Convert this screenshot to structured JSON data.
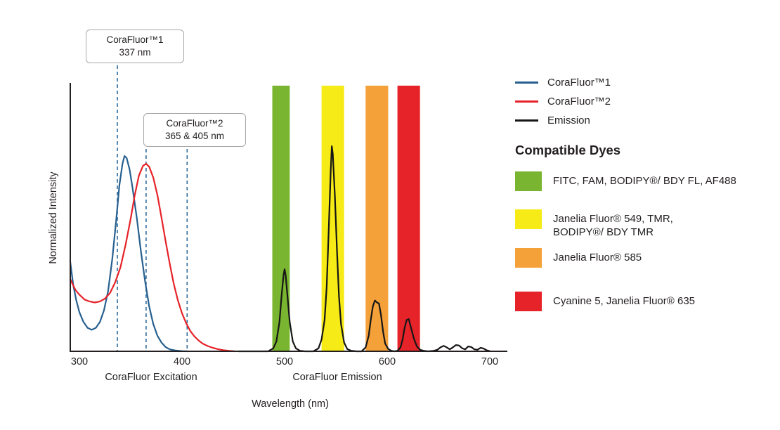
{
  "chart_data": {
    "type": "line",
    "title": "",
    "xlabel": "Wavelength (nm)",
    "ylabel": "Normalized Intensity",
    "xlim": [
      291,
      716
    ],
    "ylim": [
      0,
      1.4
    ],
    "x_ticks": [
      300,
      400,
      500,
      600,
      700
    ],
    "grid": false,
    "axis_section_labels": [
      {
        "text": "CoraFluor Excitation"
      },
      {
        "text": "CoraFluor Emission"
      }
    ],
    "dashed_line_color": "#2d6a9b",
    "dashed_lines": [
      {
        "wavelength": 337
      },
      {
        "wavelength": 365
      },
      {
        "wavelength": 405
      }
    ],
    "annotations": [
      {
        "title": "CoraFluor™1",
        "value": "337 nm"
      },
      {
        "title": "CoraFluor™2",
        "value": "365 & 405 nm"
      }
    ],
    "series": [
      {
        "name": "CoraFluor™1",
        "color": "#27608f",
        "points": [
          [
            291,
            0.46
          ],
          [
            294,
            0.34
          ],
          [
            297,
            0.26
          ],
          [
            300,
            0.2
          ],
          [
            304,
            0.15
          ],
          [
            308,
            0.12
          ],
          [
            312,
            0.11
          ],
          [
            316,
            0.12
          ],
          [
            320,
            0.15
          ],
          [
            324,
            0.21
          ],
          [
            328,
            0.31
          ],
          [
            332,
            0.47
          ],
          [
            336,
            0.68
          ],
          [
            339,
            0.85
          ],
          [
            342,
            0.96
          ],
          [
            344,
            1.0
          ],
          [
            346,
            0.99
          ],
          [
            349,
            0.93
          ],
          [
            352,
            0.83
          ],
          [
            356,
            0.68
          ],
          [
            360,
            0.51
          ],
          [
            364,
            0.36
          ],
          [
            368,
            0.23
          ],
          [
            372,
            0.14
          ],
          [
            376,
            0.08
          ],
          [
            380,
            0.045
          ],
          [
            384,
            0.022
          ],
          [
            388,
            0.01
          ],
          [
            394,
            0.004
          ],
          [
            400,
            0.001
          ],
          [
            406,
            0
          ]
        ]
      },
      {
        "name": "CoraFluor™2",
        "color": "#e62329",
        "points": [
          [
            291,
            0.37
          ],
          [
            296,
            0.315
          ],
          [
            300,
            0.29
          ],
          [
            305,
            0.265
          ],
          [
            310,
            0.255
          ],
          [
            315,
            0.25
          ],
          [
            320,
            0.255
          ],
          [
            325,
            0.27
          ],
          [
            330,
            0.3
          ],
          [
            335,
            0.355
          ],
          [
            340,
            0.43
          ],
          [
            345,
            0.545
          ],
          [
            350,
            0.68
          ],
          [
            354,
            0.8
          ],
          [
            358,
            0.9
          ],
          [
            362,
            0.95
          ],
          [
            365,
            0.96
          ],
          [
            368,
            0.945
          ],
          [
            372,
            0.89
          ],
          [
            376,
            0.8
          ],
          [
            380,
            0.685
          ],
          [
            384,
            0.565
          ],
          [
            388,
            0.45
          ],
          [
            392,
            0.345
          ],
          [
            396,
            0.26
          ],
          [
            400,
            0.195
          ],
          [
            404,
            0.145
          ],
          [
            408,
            0.105
          ],
          [
            412,
            0.077
          ],
          [
            416,
            0.056
          ],
          [
            420,
            0.04
          ],
          [
            425,
            0.027
          ],
          [
            430,
            0.018
          ],
          [
            435,
            0.011
          ],
          [
            440,
            0.006
          ],
          [
            446,
            0.002
          ],
          [
            452,
            0
          ]
        ]
      },
      {
        "name": "Emission",
        "color": "#161616",
        "points": [
          [
            455,
            0
          ],
          [
            484,
            0
          ],
          [
            489,
            0.015
          ],
          [
            492,
            0.05
          ],
          [
            495,
            0.15
          ],
          [
            497,
            0.28
          ],
          [
            499,
            0.39
          ],
          [
            500,
            0.42
          ],
          [
            501,
            0.39
          ],
          [
            503,
            0.27
          ],
          [
            505,
            0.15
          ],
          [
            508,
            0.05
          ],
          [
            511,
            0.015
          ],
          [
            515,
            0.003
          ],
          [
            520,
            0
          ],
          [
            528,
            0
          ],
          [
            533,
            0.015
          ],
          [
            536,
            0.06
          ],
          [
            539,
            0.16
          ],
          [
            541,
            0.33
          ],
          [
            543,
            0.62
          ],
          [
            545,
            0.93
          ],
          [
            546,
            1.05
          ],
          [
            547,
            1.01
          ],
          [
            549,
            0.8
          ],
          [
            551,
            0.52
          ],
          [
            553,
            0.28
          ],
          [
            555,
            0.14
          ],
          [
            558,
            0.045
          ],
          [
            561,
            0.012
          ],
          [
            565,
            0.003
          ],
          [
            570,
            0
          ],
          [
            575,
            0
          ],
          [
            579,
            0.02
          ],
          [
            582,
            0.08
          ],
          [
            584,
            0.16
          ],
          [
            586,
            0.23
          ],
          [
            588,
            0.26
          ],
          [
            590,
            0.25
          ],
          [
            592,
            0.245
          ],
          [
            594,
            0.185
          ],
          [
            596,
            0.1
          ],
          [
            598,
            0.04
          ],
          [
            601,
            0.012
          ],
          [
            604,
            0.003
          ],
          [
            607,
            0
          ],
          [
            610,
            0.003
          ],
          [
            613,
            0.02
          ],
          [
            615,
            0.06
          ],
          [
            617,
            0.12
          ],
          [
            619,
            0.16
          ],
          [
            621,
            0.165
          ],
          [
            623,
            0.125
          ],
          [
            626,
            0.065
          ],
          [
            629,
            0.025
          ],
          [
            632,
            0.008
          ],
          [
            636,
            0.002
          ],
          [
            640,
            0
          ],
          [
            645,
            0.002
          ],
          [
            649,
            0.008
          ],
          [
            652,
            0.02
          ],
          [
            655,
            0.028
          ],
          [
            658,
            0.02
          ],
          [
            661,
            0.01
          ],
          [
            664,
            0.02
          ],
          [
            667,
            0.032
          ],
          [
            670,
            0.03
          ],
          [
            673,
            0.016
          ],
          [
            676,
            0.01
          ],
          [
            679,
            0.025
          ],
          [
            682,
            0.022
          ],
          [
            685,
            0.01
          ],
          [
            688,
            0.008
          ],
          [
            691,
            0.018
          ],
          [
            694,
            0.014
          ],
          [
            697,
            0.005
          ],
          [
            700,
            0.001
          ]
        ]
      }
    ],
    "bands": [
      {
        "from": 488,
        "to": 505,
        "top_intensity": 1.36,
        "color": "#79b530",
        "label": "FITC, FAM, BODIPY®/ BDY FL, AF488"
      },
      {
        "from": 536,
        "to": 558,
        "top_intensity": 1.36,
        "color": "#f6eb16",
        "label": "Janelia Fluor® 549, TMR, BODIPY®/ BDY TMR"
      },
      {
        "from": 579,
        "to": 601,
        "top_intensity": 1.36,
        "color": "#f4a13a",
        "label": "Janelia Fluor® 585"
      },
      {
        "from": 610,
        "to": 632,
        "top_intensity": 1.36,
        "color": "#e62329",
        "label": "Cyanine 5, Janelia Fluor® 635"
      }
    ]
  },
  "legend": {
    "lines": [
      {
        "label": "CoraFluor™1",
        "color": "#27608f"
      },
      {
        "label": "CoraFluor™2",
        "color": "#e62329"
      },
      {
        "label": "Emission",
        "color": "#161616"
      }
    ],
    "dyes_heading": "Compatible Dyes",
    "dyes": [
      {
        "color": "#79b530",
        "label": "FITC, FAM, BODIPY®/ BDY FL, AF488"
      },
      {
        "color": "#f6eb16",
        "label": "Janelia Fluor® 549, TMR,\nBODIPY®/ BDY TMR"
      },
      {
        "color": "#f4a13a",
        "label": "Janelia Fluor® 585"
      },
      {
        "color": "#e62329",
        "label": "Cyanine 5, Janelia Fluor® 635"
      }
    ]
  }
}
